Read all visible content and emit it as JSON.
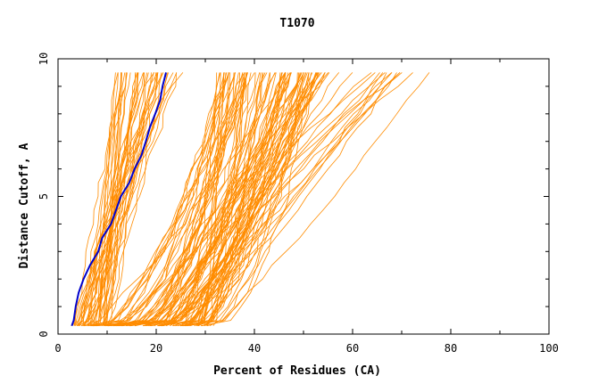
{
  "chart_data": {
    "type": "line",
    "title": "T1070",
    "xlabel": "Percent of Residues (CA)",
    "ylabel": "Distance Cutoff, A",
    "xlim": [
      0,
      100
    ],
    "ylim": [
      0,
      10
    ],
    "x_ticks": [
      "0",
      "20",
      "40",
      "60",
      "80",
      "100"
    ],
    "y_ticks": [
      "0",
      "5",
      "10"
    ],
    "grid": false,
    "legend": "none",
    "y_cutoffs": [
      0.3,
      0.5,
      1.0,
      1.5,
      2.0,
      2.5,
      3.0,
      3.5,
      4.0,
      4.5,
      5.0,
      5.5,
      6.0,
      6.5,
      7.0,
      7.5,
      8.0,
      8.5,
      9.0,
      9.5
    ],
    "highlight_series": {
      "color": "#0000cc",
      "x": [
        2.8,
        3.2,
        3.6,
        4.2,
        5.2,
        6.5,
        8.2,
        9.0,
        10.8,
        11.8,
        12.8,
        14.5,
        15.6,
        17.0,
        17.9,
        18.7,
        19.8,
        20.8,
        21.3,
        22.0
      ]
    },
    "background_series": {
      "color": "#ff8c00",
      "count": 150,
      "x_start_range": [
        3,
        30
      ],
      "x_end_range": [
        11,
        76
      ]
    }
  }
}
